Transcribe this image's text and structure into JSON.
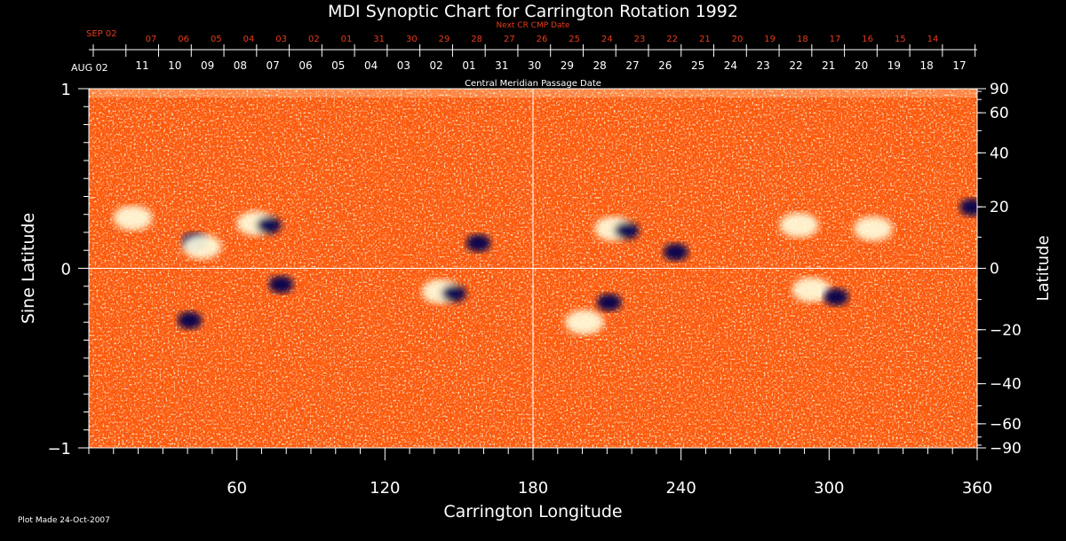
{
  "chart_data": {
    "type": "heatmap",
    "title": "MDI Synoptic Chart for Carrington Rotation 1992",
    "xlabel": "Carrington Longitude",
    "ylabel_left": "Sine Latitude",
    "ylabel_right": "Latitude",
    "xlim": [
      0,
      360
    ],
    "ylim": [
      -1,
      1
    ],
    "x_ticks": [
      60,
      120,
      180,
      240,
      300,
      360
    ],
    "y_ticks_left": [
      -1,
      0,
      1
    ],
    "y_tick_labels_left": [
      "−1",
      "0",
      "1"
    ],
    "lat_ticks_right": [
      90,
      60,
      40,
      20,
      0,
      -20,
      -40,
      -60,
      -90
    ],
    "lat_tick_labels_right": [
      "90",
      "60",
      "40",
      "20",
      "0",
      "−20",
      "−40",
      "−60",
      "−90"
    ],
    "top_axis_1": {
      "label": "Central Meridian Passage Date",
      "start_label": "AUG 02",
      "dates": [
        "11",
        "10",
        "09",
        "08",
        "07",
        "06",
        "05",
        "04",
        "03",
        "02",
        "01",
        "31",
        "30",
        "29",
        "28",
        "27",
        "26",
        "25",
        "24",
        "23",
        "22",
        "21",
        "20",
        "19",
        "18",
        "17"
      ]
    },
    "top_axis_2": {
      "label": "Next CR CMP Date",
      "start_label": "SEP 02",
      "dates": [
        "07",
        "06",
        "05",
        "04",
        "03",
        "02",
        "01",
        "31",
        "30",
        "29",
        "28",
        "27",
        "26",
        "25",
        "24",
        "23",
        "22",
        "21",
        "20",
        "19",
        "18",
        "17",
        "16",
        "15",
        "14"
      ]
    },
    "active_regions": [
      {
        "lon": 20,
        "sinlat": 0.28,
        "polarity": "positive"
      },
      {
        "lon": 40,
        "sinlat": 0.16,
        "polarity": "negative"
      },
      {
        "lon": 48,
        "sinlat": 0.12,
        "polarity": "positive"
      },
      {
        "lon": 70,
        "sinlat": 0.25,
        "polarity": "mixed"
      },
      {
        "lon": 75,
        "sinlat": -0.08,
        "polarity": "negative"
      },
      {
        "lon": 38,
        "sinlat": -0.28,
        "polarity": "negative"
      },
      {
        "lon": 145,
        "sinlat": -0.13,
        "polarity": "mixed"
      },
      {
        "lon": 155,
        "sinlat": 0.15,
        "polarity": "negative"
      },
      {
        "lon": 203,
        "sinlat": -0.3,
        "polarity": "positive"
      },
      {
        "lon": 208,
        "sinlat": -0.18,
        "polarity": "negative"
      },
      {
        "lon": 215,
        "sinlat": 0.22,
        "polarity": "mixed"
      },
      {
        "lon": 235,
        "sinlat": 0.1,
        "polarity": "negative"
      },
      {
        "lon": 290,
        "sinlat": 0.24,
        "polarity": "positive"
      },
      {
        "lon": 295,
        "sinlat": -0.12,
        "polarity": "positive"
      },
      {
        "lon": 300,
        "sinlat": -0.15,
        "polarity": "negative"
      },
      {
        "lon": 320,
        "sinlat": 0.22,
        "polarity": "positive"
      },
      {
        "lon": 355,
        "sinlat": 0.35,
        "polarity": "negative"
      }
    ],
    "colormap": [
      "#00004d",
      "#1a0a80",
      "#ff4a00",
      "#ff7a20",
      "#ffffe0"
    ],
    "grid_lines": "x=180, sinlat=0"
  },
  "footer_note": "Plot Made 24-Oct-2007"
}
